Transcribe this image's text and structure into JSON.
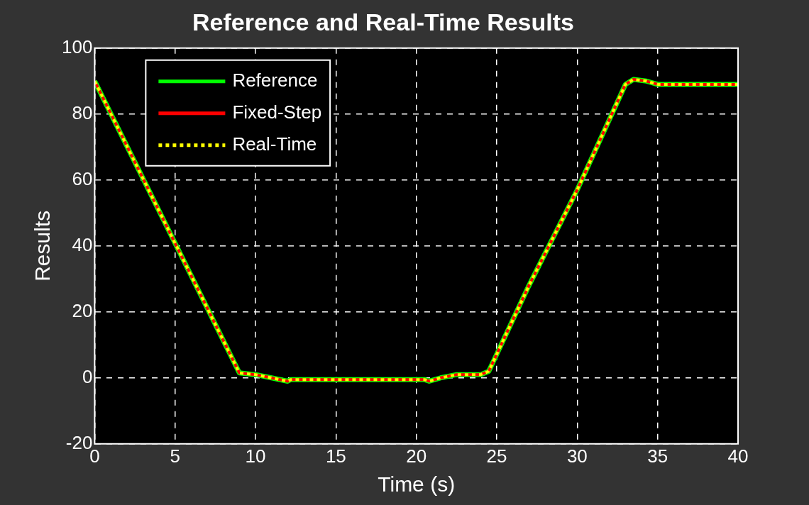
{
  "chart_data": {
    "type": "line",
    "title": "Reference and Real-Time Results",
    "xlabel": "Time (s)",
    "ylabel": "Results",
    "x": [
      0,
      9,
      10,
      11,
      12,
      12.2,
      20.5,
      20.8,
      21.5,
      22.5,
      24,
      24.5,
      27,
      30,
      33,
      33.5,
      34.3,
      35,
      40
    ],
    "series": [
      {
        "name": "Reference",
        "color": "#00ff00",
        "line_style": "solid",
        "values": [
          90,
          1.5,
          1,
          0,
          -1,
          -0.5,
          -0.5,
          -1,
          0,
          1,
          1,
          2,
          28,
          57,
          89,
          90.5,
          90,
          89,
          89
        ]
      },
      {
        "name": "Fixed-Step",
        "color": "#ff0000",
        "line_style": "solid",
        "values": [
          90,
          1.5,
          1,
          0,
          -1,
          -0.5,
          -0.5,
          -1,
          0,
          1,
          1,
          2,
          28,
          57,
          89,
          90.5,
          90,
          89,
          89
        ]
      },
      {
        "name": "Real-Time",
        "color": "#ffff00",
        "line_style": "dotted",
        "values": [
          90,
          1.5,
          1,
          0,
          -1,
          -0.5,
          -0.5,
          -1,
          0,
          1,
          1,
          2,
          28,
          57,
          89,
          90.5,
          90,
          89,
          89
        ]
      }
    ],
    "xlim": [
      0,
      40
    ],
    "xticks": [
      0,
      5,
      10,
      15,
      20,
      25,
      30,
      35,
      40
    ],
    "ylim": [
      -20,
      100
    ],
    "yticks": [
      -20,
      0,
      20,
      40,
      60,
      80,
      100
    ],
    "grid": true,
    "legend": "top left",
    "marker": "none"
  }
}
